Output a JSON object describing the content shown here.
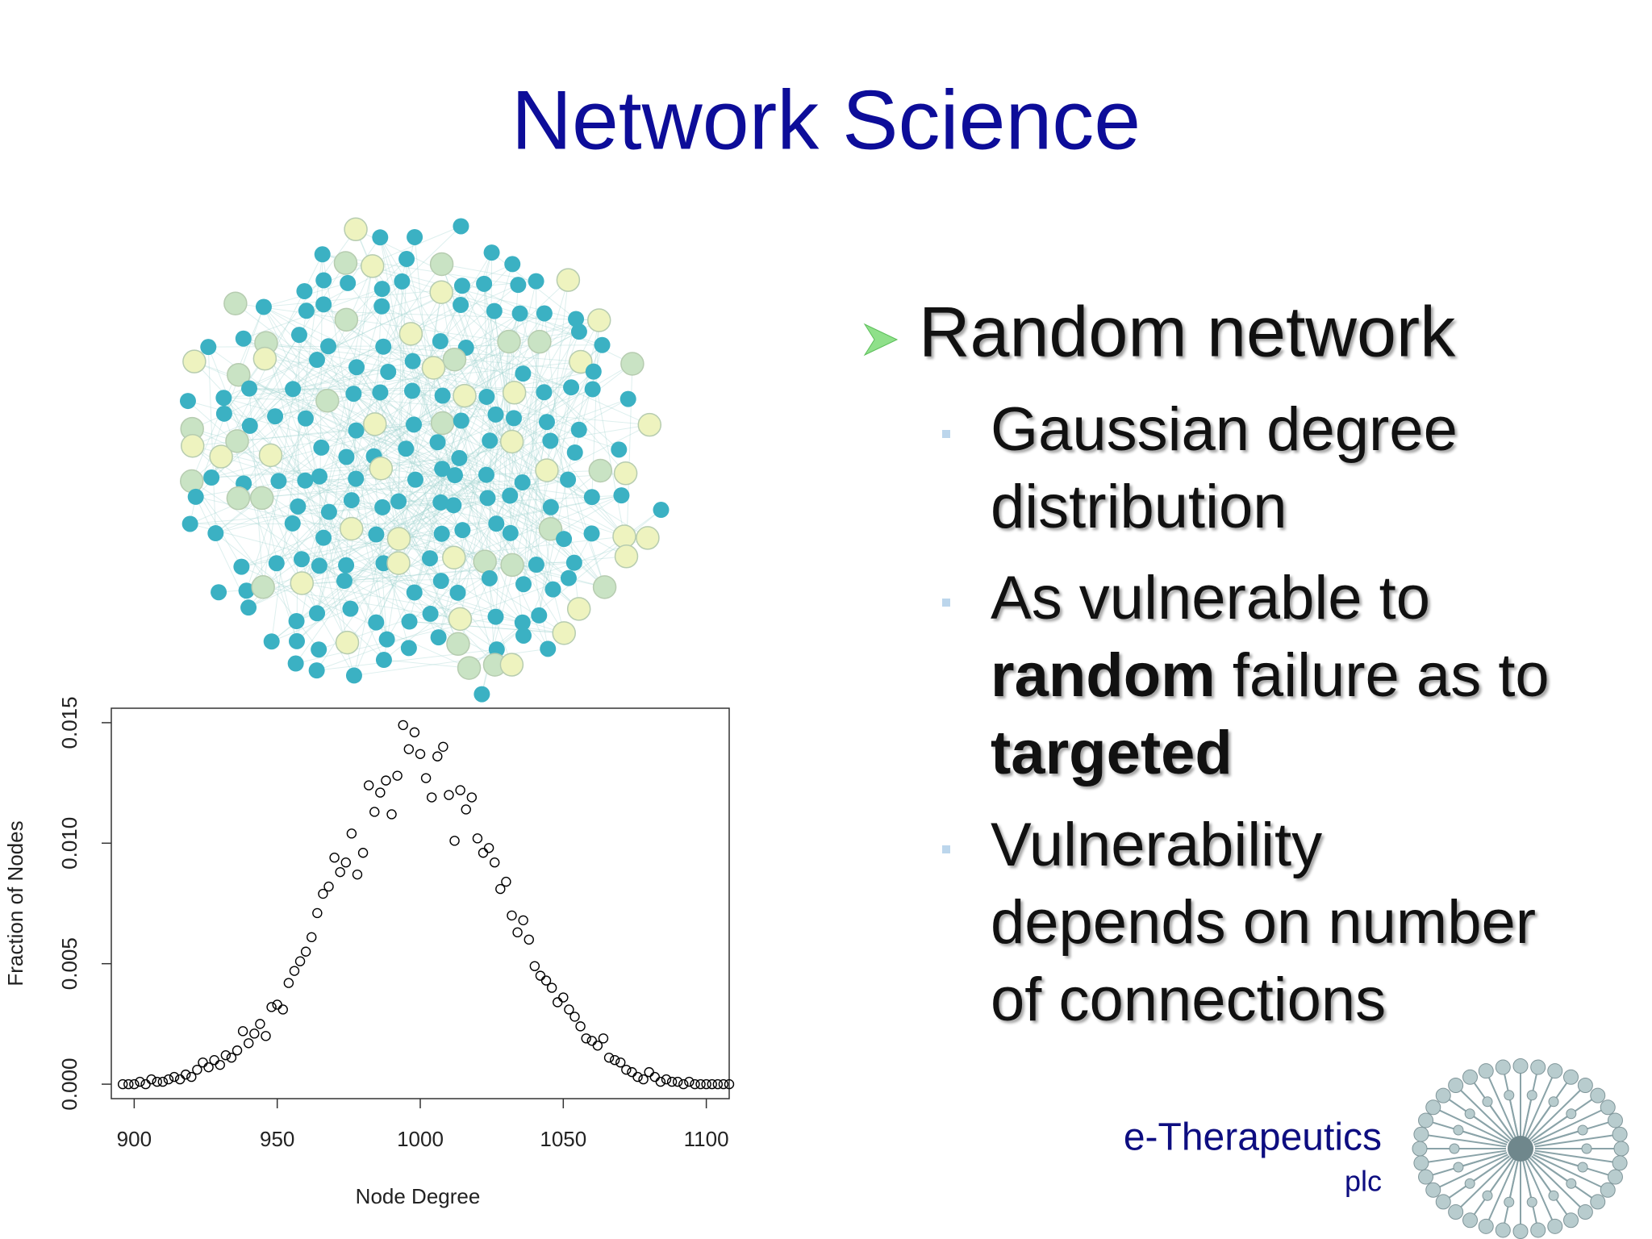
{
  "title": "Network Science",
  "bullets": [
    {
      "text": "Random network",
      "items": [
        {
          "lines": [
            [
              {
                "text": "Gaussian degree"
              }
            ],
            [
              {
                "text": "distribution"
              }
            ]
          ]
        },
        {
          "lines": [
            [
              {
                "text": "As vulnerable to"
              }
            ],
            [
              {
                "text": "random",
                "bold": true
              },
              {
                "text": " failure as to"
              }
            ],
            [
              {
                "text": "targeted",
                "bold": true
              }
            ]
          ]
        },
        {
          "lines": [
            [
              {
                "text": "Vulnerability"
              }
            ],
            [
              {
                "text": "depends on number"
              }
            ],
            [
              {
                "text": "of connections"
              }
            ]
          ]
        }
      ]
    }
  ],
  "logo": {
    "name": "e-Therapeutics",
    "suffix": "plc"
  },
  "chart_data": {
    "type": "scatter",
    "x_label": "Node Degree",
    "y_label": "Fraction of Nodes",
    "color": "#000000",
    "xlim": [
      892,
      1108
    ],
    "ylim": [
      -0.0006,
      0.0156
    ],
    "xticks": [
      900,
      950,
      1000,
      1050,
      1100
    ],
    "yticks": [
      {
        "value": 0,
        "label": "0.000"
      },
      {
        "value": 0.005,
        "label": "0.005"
      },
      {
        "value": 0.01,
        "label": "0.010"
      },
      {
        "value": 0.015,
        "label": "0.015"
      }
    ],
    "x": [
      896,
      898,
      900,
      902,
      904,
      906,
      908,
      910,
      912,
      914,
      916,
      918,
      920,
      922,
      924,
      926,
      928,
      930,
      932,
      934,
      936,
      938,
      940,
      942,
      944,
      946,
      948,
      950,
      952,
      954,
      956,
      958,
      960,
      962,
      964,
      966,
      968,
      970,
      972,
      974,
      976,
      978,
      980,
      982,
      984,
      986,
      988,
      990,
      992,
      994,
      996,
      998,
      1000,
      1002,
      1004,
      1006,
      1008,
      1010,
      1012,
      1014,
      1016,
      1018,
      1020,
      1022,
      1024,
      1026,
      1028,
      1030,
      1032,
      1034,
      1036,
      1038,
      1040,
      1042,
      1044,
      1046,
      1048,
      1050,
      1052,
      1054,
      1056,
      1058,
      1060,
      1062,
      1064,
      1066,
      1068,
      1070,
      1072,
      1074,
      1076,
      1078,
      1080,
      1082,
      1084,
      1086,
      1088,
      1090,
      1092,
      1094,
      1096,
      1098,
      1100,
      1102,
      1104,
      1106,
      1108
    ],
    "values": [
      0,
      0,
      0,
      0.0001,
      0,
      0.0002,
      0.0001,
      0.0001,
      0.0002,
      0.0003,
      0.0002,
      0.0004,
      0.0003,
      0.0006,
      0.0009,
      0.0007,
      0.001,
      0.0008,
      0.0012,
      0.0011,
      0.0014,
      0.0022,
      0.0017,
      0.0021,
      0.0025,
      0.002,
      0.0032,
      0.0033,
      0.0031,
      0.0042,
      0.0047,
      0.0051,
      0.0055,
      0.0061,
      0.0071,
      0.0079,
      0.0082,
      0.0094,
      0.0088,
      0.0092,
      0.0104,
      0.0087,
      0.0096,
      0.0124,
      0.0113,
      0.0121,
      0.0126,
      0.0112,
      0.0128,
      0.0149,
      0.0139,
      0.0146,
      0.0137,
      0.0127,
      0.0119,
      0.0136,
      0.014,
      0.012,
      0.0101,
      0.0122,
      0.0114,
      0.0119,
      0.0102,
      0.0096,
      0.0098,
      0.0092,
      0.0081,
      0.0084,
      0.007,
      0.0063,
      0.0068,
      0.006,
      0.0049,
      0.0045,
      0.0043,
      0.004,
      0.0034,
      0.0036,
      0.0031,
      0.0028,
      0.0024,
      0.0019,
      0.0018,
      0.0016,
      0.0019,
      0.0011,
      0.001,
      0.0009,
      0.0006,
      0.0005,
      0.0003,
      0.0002,
      0.0005,
      0.0003,
      0.0001,
      0.0002,
      0.0001,
      0.0001,
      0,
      0.0001,
      0,
      0,
      0,
      0,
      0,
      0,
      0
    ]
  }
}
